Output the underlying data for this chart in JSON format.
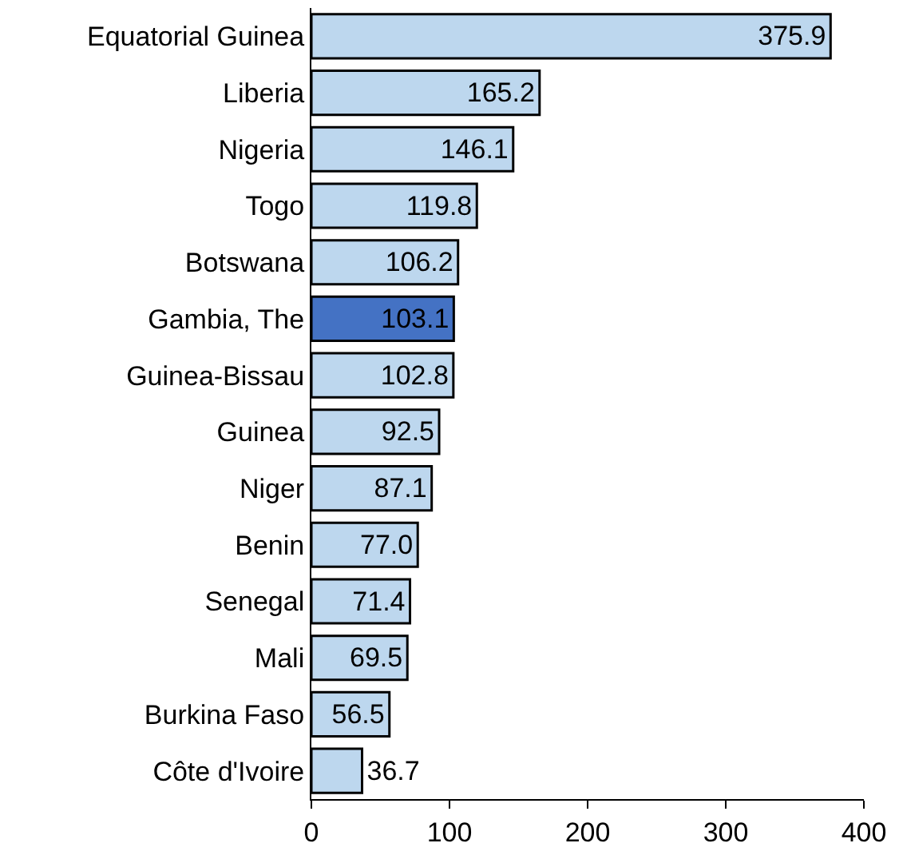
{
  "chart_data": {
    "type": "bar",
    "orientation": "horizontal",
    "categories": [
      "Equatorial Guinea",
      "Liberia",
      "Nigeria",
      "Togo",
      "Botswana",
      "Gambia, The",
      "Guinea-Bissau",
      "Guinea",
      "Niger",
      "Benin",
      "Senegal",
      "Mali",
      "Burkina Faso",
      "Côte d'Ivoire"
    ],
    "values": [
      375.9,
      165.2,
      146.1,
      119.8,
      106.2,
      103.1,
      102.8,
      92.5,
      87.1,
      77.0,
      71.4,
      69.5,
      56.5,
      36.7
    ],
    "value_labels": [
      "375.9",
      "165.2",
      "146.1",
      "119.8",
      "106.2",
      "103.1",
      "102.8",
      "92.5",
      "87.1",
      "77.0",
      "71.4",
      "69.5",
      "56.5",
      "36.7"
    ],
    "colors": [
      "#bdd7ee",
      "#bdd7ee",
      "#bdd7ee",
      "#bdd7ee",
      "#bdd7ee",
      "#4472c4",
      "#bdd7ee",
      "#bdd7ee",
      "#bdd7ee",
      "#bdd7ee",
      "#bdd7ee",
      "#bdd7ee",
      "#bdd7ee",
      "#bdd7ee"
    ],
    "xlim": [
      0,
      400
    ],
    "xticks": [
      0,
      100,
      200,
      300,
      400
    ]
  }
}
